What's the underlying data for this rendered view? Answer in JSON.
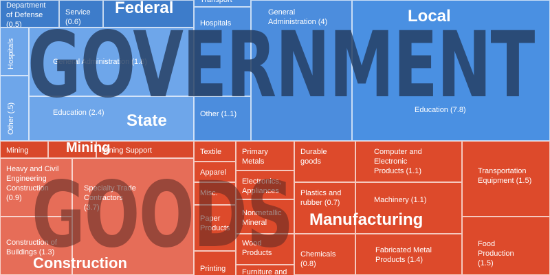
{
  "overlay": {
    "government": "GOVERNMENT",
    "goods": "GOODS"
  },
  "government": {
    "federal": {
      "label": "Federal",
      "cells": [
        "Department of Defense (0.5)",
        "Service (0.6)"
      ]
    },
    "state": {
      "label": "State",
      "cells": [
        "Hospitals",
        "Other (.5)",
        "General Administration (1.8)",
        "Education (2.4)"
      ]
    },
    "other_cells": [
      "Transport",
      "Hospitals",
      "Other (1.1)",
      "General Administration (4)"
    ],
    "local": {
      "label": "Local",
      "cells": [
        "Education (7.8)"
      ]
    }
  },
  "goods": {
    "mining": {
      "label": "Mining",
      "cells": [
        "Mining",
        "Mining Support"
      ]
    },
    "construction": {
      "label": "Construction",
      "cells": [
        "Heavy and Civil Engineering Construction (0.9)",
        "Construction of Buildings (1.3)",
        "Specialty Trade Contractors (3.7)"
      ]
    },
    "manufacturing": {
      "label": "Manufacturing",
      "cells": [
        "Textile",
        "Apparel",
        "Misc.",
        "Paper Products",
        "Printing",
        "Primary Metals",
        "Electronics, Appliances",
        "Nonmetallic Mineral",
        "Wood Products",
        "Furniture and",
        "Durable goods",
        "Plastics and rubber (0.7)",
        "Chemicals (0.8)",
        "Computer and Electronic Products (1.1)",
        "Machinery (1.1)",
        "Fabricated Metal Products (1.4)",
        "Transportation Equipment (1.5)",
        "Food Production (1.5)"
      ]
    }
  }
}
